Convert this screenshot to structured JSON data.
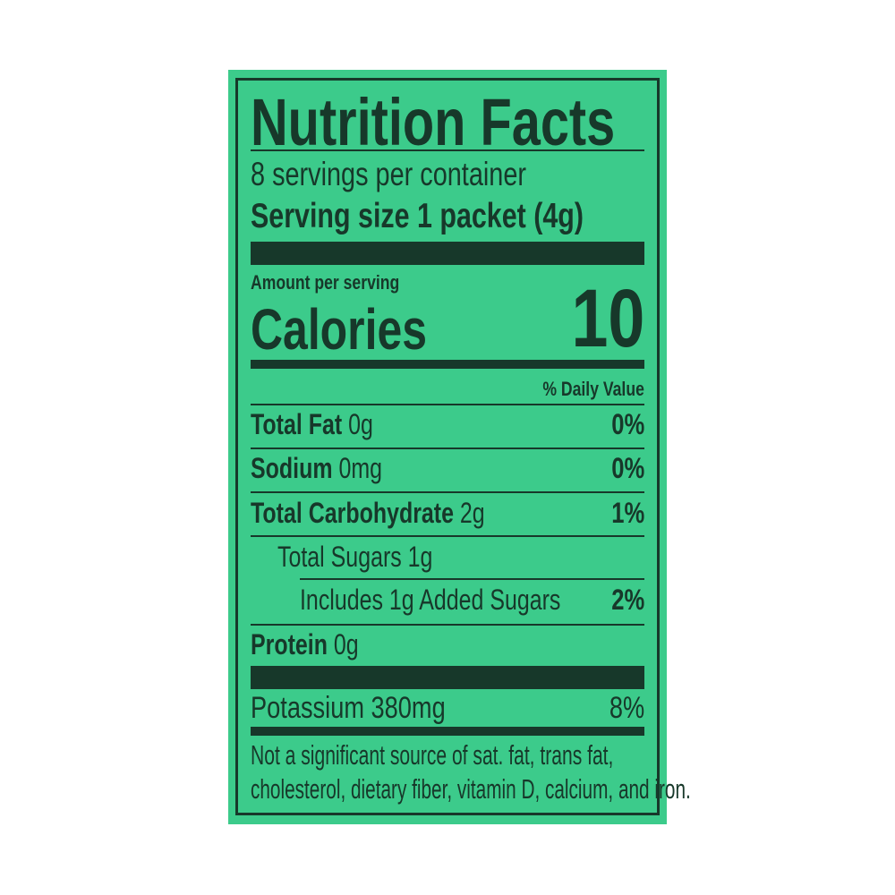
{
  "label": {
    "title": "Nutrition Facts",
    "servings_per_container": "8 servings per container",
    "serving_size_label": "Serving size",
    "serving_size_value": "1 packet (4g)",
    "amount_per_serving": "Amount per serving",
    "calories_label": "Calories",
    "calories_value": "10",
    "daily_value_header": "% Daily Value",
    "nutrients": [
      {
        "name": "Total Fat",
        "amount": "0g",
        "dv": "0%"
      },
      {
        "name": "Sodium",
        "amount": "0mg",
        "dv": "0%"
      },
      {
        "name": "Total Carbohydrate",
        "amount": "2g",
        "dv": "1%"
      },
      {
        "name": "Total Sugars 1g",
        "amount": "",
        "dv": ""
      },
      {
        "name": "Includes 1g Added Sugars",
        "amount": "",
        "dv": "2%"
      },
      {
        "name": "Protein",
        "amount": "0g",
        "dv": ""
      }
    ],
    "minerals": [
      {
        "name": "Potassium 380mg",
        "dv": "8%"
      }
    ],
    "footnote_line1": "Not a significant source of sat. fat, trans fat,",
    "footnote_line2": "cholesterol, dietary fiber, vitamin D, calcium, and iron."
  },
  "colors": {
    "background": "#3ccb8b",
    "ink": "#17382a"
  }
}
